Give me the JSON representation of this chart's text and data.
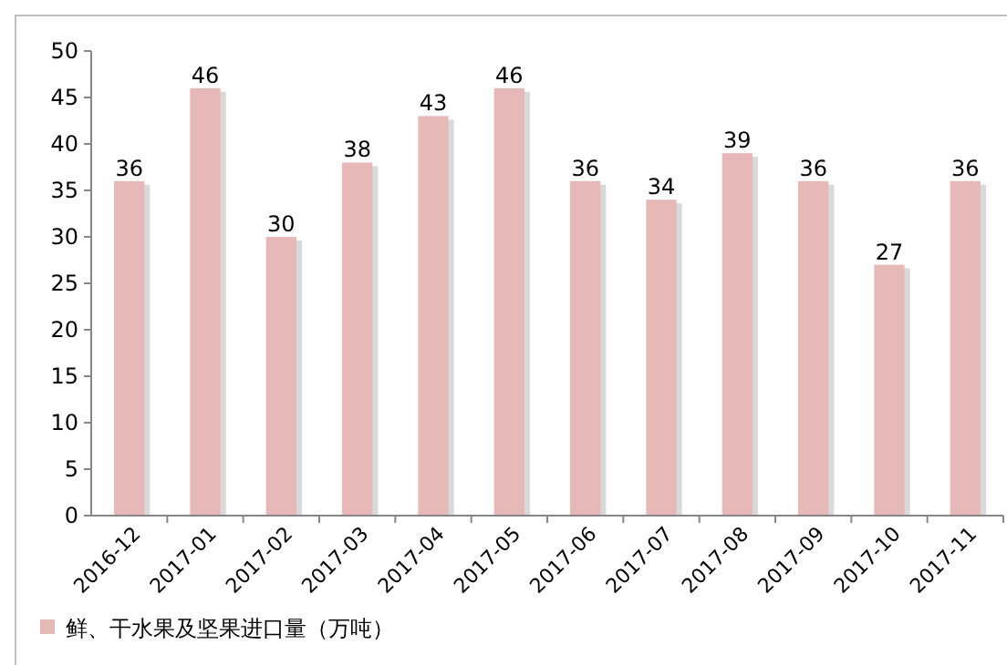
{
  "chart_data": {
    "type": "bar",
    "categories": [
      "2016-12",
      "2017-01",
      "2017-02",
      "2017-03",
      "2017-04",
      "2017-05",
      "2017-06",
      "2017-07",
      "2017-08",
      "2017-09",
      "2017-10",
      "2017-11"
    ],
    "series": [
      {
        "name": "鲜、干水果及坚果进口量（万吨）",
        "color": "#e6b9b8",
        "values": [
          36,
          46,
          30,
          38,
          43,
          46,
          36,
          34,
          39,
          36,
          27,
          36
        ]
      }
    ],
    "ylim": [
      0,
      50
    ],
    "yticks": [
      0,
      5,
      10,
      15,
      20,
      25,
      30,
      35,
      40,
      45,
      50
    ],
    "grid": false,
    "legend": "bottom left",
    "data_labels": true
  }
}
